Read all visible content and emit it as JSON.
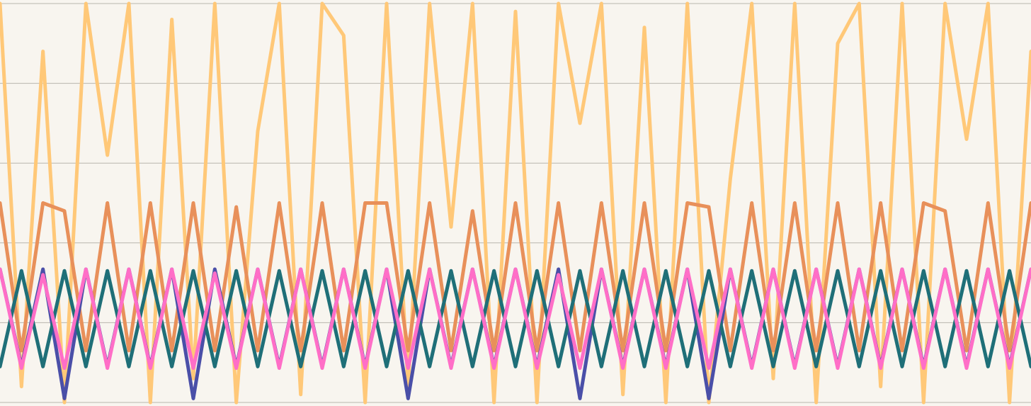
{
  "chart_data": {
    "type": "line",
    "x": [
      0,
      1,
      2,
      3,
      4,
      5,
      6,
      7,
      8,
      9,
      10,
      11,
      12,
      13,
      14,
      15,
      16,
      17,
      18,
      19,
      20,
      21,
      22,
      23,
      24,
      25,
      26,
      27,
      28,
      29,
      30,
      31,
      32,
      33,
      34,
      35,
      36,
      37,
      38,
      39,
      40,
      41,
      42,
      43,
      44,
      45,
      46,
      47,
      48
    ],
    "xlim": [
      0,
      48
    ],
    "ylim": [
      0,
      5
    ],
    "yticks": [
      0,
      1,
      2,
      3,
      4,
      5
    ],
    "grid": true,
    "series": [
      {
        "color": "#ffc878",
        "values": [
          5,
          0.2,
          4.4,
          0,
          5,
          3.1,
          5,
          0,
          4.8,
          0.3,
          5,
          0,
          3.4,
          5,
          0.1,
          5,
          4.6,
          0,
          5,
          0.2,
          5,
          2.2,
          5,
          0,
          4.9,
          0,
          5,
          3.5,
          5,
          0.1,
          4.7,
          0,
          5,
          0,
          2.8,
          5,
          0.3,
          5,
          0,
          4.5,
          5,
          0.2,
          5,
          0,
          5,
          3.3,
          5,
          0,
          4.4
        ]
      },
      {
        "color": "#e8905a",
        "values": [
          2.5,
          0.65,
          2.5,
          2.4,
          0.65,
          2.5,
          0.65,
          2.5,
          0.65,
          2.5,
          0.65,
          2.45,
          0.65,
          2.5,
          0.65,
          2.5,
          0.65,
          2.5,
          2.5,
          0.65,
          2.5,
          0.65,
          2.4,
          0.65,
          2.5,
          0.65,
          2.5,
          0.65,
          2.5,
          0.65,
          2.5,
          0.65,
          2.5,
          2.45,
          0.65,
          2.5,
          0.65,
          2.5,
          0.65,
          2.5,
          0.65,
          2.5,
          0.65,
          2.5,
          2.4,
          0.65,
          2.5,
          0.65,
          2.5
        ]
      },
      {
        "color": "#4a4fa8",
        "values": [
          1.67,
          0.45,
          1.67,
          0.05,
          1.67,
          0.45,
          1.67,
          0.45,
          1.67,
          0.05,
          1.67,
          0.45,
          1.67,
          0.45,
          1.67,
          0.45,
          1.67,
          0.45,
          1.67,
          0.05,
          1.67,
          0.45,
          1.67,
          0.45,
          1.67,
          0.45,
          1.67,
          0.05,
          1.67,
          0.45,
          1.67,
          0.45,
          1.67,
          0.05,
          1.67,
          0.45,
          1.67,
          0.45,
          1.67,
          0.45,
          1.67,
          0.45,
          1.67,
          0.45,
          1.67,
          0.45,
          1.67,
          0.45,
          1.67
        ]
      },
      {
        "color": "#1f6f78",
        "values": [
          0.45,
          1.65,
          0.45,
          1.65,
          0.45,
          1.65,
          0.45,
          1.65,
          0.45,
          1.65,
          0.45,
          1.65,
          0.45,
          1.65,
          0.45,
          1.65,
          0.45,
          1.65,
          0.45,
          1.65,
          0.45,
          1.65,
          0.45,
          1.65,
          0.45,
          1.65,
          0.45,
          1.65,
          0.45,
          1.65,
          0.45,
          1.65,
          0.45,
          1.65,
          0.45,
          1.65,
          0.45,
          1.65,
          0.45,
          1.65,
          0.45,
          1.65,
          0.45,
          1.65,
          0.45,
          1.65,
          0.45,
          1.65,
          0.45
        ]
      },
      {
        "color": "#ff6ec7",
        "values": [
          1.67,
          0.43,
          1.6,
          0.43,
          1.67,
          0.43,
          1.67,
          0.43,
          1.67,
          0.43,
          1.62,
          0.43,
          1.67,
          0.43,
          1.67,
          0.43,
          1.67,
          0.43,
          1.67,
          0.43,
          1.67,
          0.43,
          1.67,
          0.43,
          1.67,
          0.43,
          1.6,
          0.43,
          1.67,
          0.43,
          1.67,
          0.43,
          1.67,
          0.43,
          1.67,
          0.43,
          1.67,
          0.43,
          1.67,
          0.43,
          1.67,
          0.43,
          1.67,
          0.43,
          1.67,
          0.43,
          1.67,
          0.43,
          1.67
        ]
      }
    ]
  }
}
